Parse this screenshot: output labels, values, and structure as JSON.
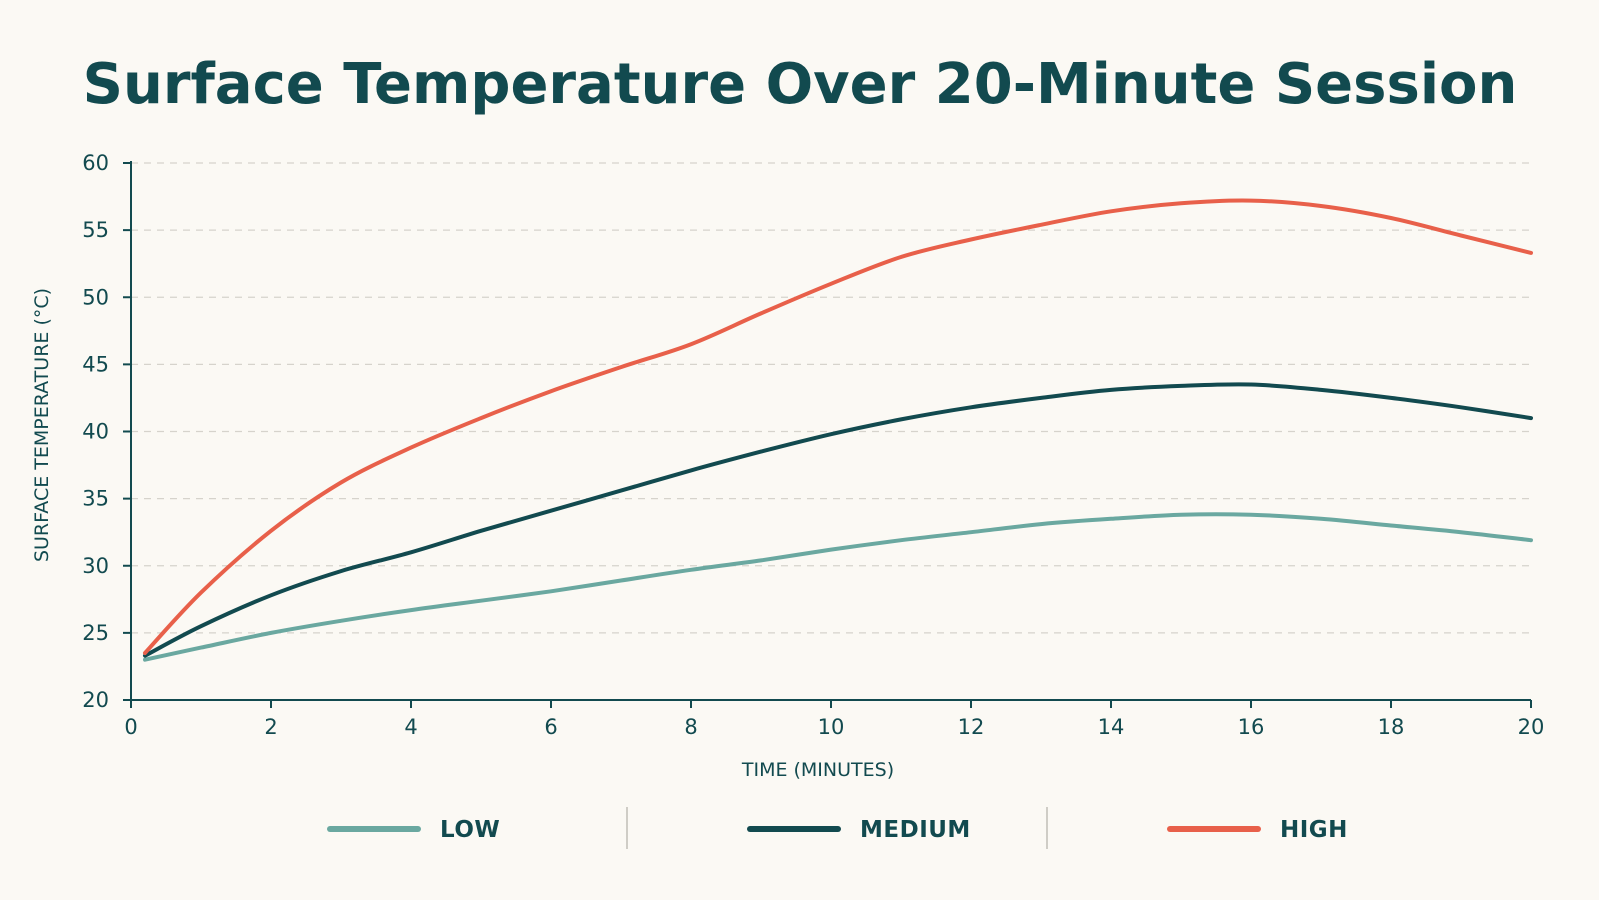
{
  "chart_data": {
    "type": "line",
    "title": "Surface Temperature Over 20-Minute Session",
    "xlabel": "TIME (MINUTES)",
    "ylabel": "SURFACE TEMPERATURE (°C)",
    "xlim": [
      0,
      20
    ],
    "ylim": [
      20,
      60
    ],
    "xticks": [
      0,
      2,
      4,
      6,
      8,
      10,
      12,
      14,
      16,
      18,
      20
    ],
    "yticks": [
      20,
      25,
      30,
      35,
      40,
      45,
      50,
      55,
      60
    ],
    "grid": "horizontal dashed",
    "legend_position": "bottom",
    "x": [
      0.2,
      1,
      2,
      3,
      4,
      5,
      6,
      7,
      8,
      9,
      10,
      11,
      12,
      13,
      14,
      15,
      16,
      17,
      18,
      19,
      20
    ],
    "series": [
      {
        "name": "LOW",
        "color": "#6aa8a0",
        "values": [
          23.0,
          23.9,
          25.0,
          25.9,
          26.7,
          27.4,
          28.1,
          28.9,
          29.7,
          30.4,
          31.2,
          31.9,
          32.5,
          33.1,
          33.5,
          33.8,
          33.8,
          33.5,
          33.0,
          32.5,
          31.9
        ]
      },
      {
        "name": "MEDIUM",
        "color": "#124a4f",
        "values": [
          23.3,
          25.5,
          27.8,
          29.6,
          31.0,
          32.6,
          34.1,
          35.6,
          37.1,
          38.5,
          39.8,
          40.9,
          41.8,
          42.5,
          43.1,
          43.4,
          43.5,
          43.1,
          42.5,
          41.8,
          41.0
        ]
      },
      {
        "name": "HIGH",
        "color": "#e8604a",
        "values": [
          23.5,
          28.0,
          32.6,
          36.2,
          38.8,
          41.0,
          43.0,
          44.8,
          46.5,
          48.8,
          51.0,
          53.0,
          54.3,
          55.4,
          56.4,
          57.0,
          57.2,
          56.8,
          55.9,
          54.6,
          53.3
        ]
      }
    ]
  },
  "colors": {
    "background": "#fbf9f4",
    "text": "#124a4f",
    "grid": "#d6d3cc",
    "legend_separator": "#cfcdc6"
  }
}
